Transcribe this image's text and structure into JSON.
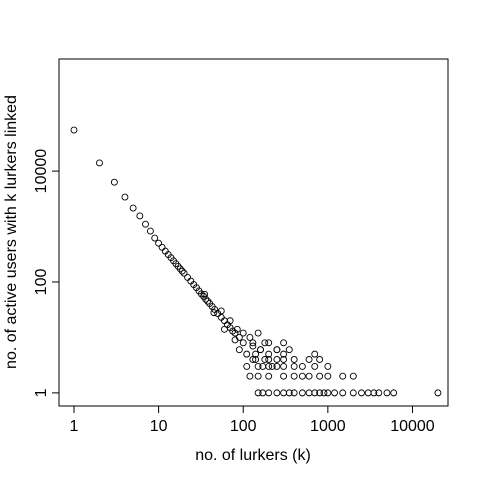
{
  "chart_data": {
    "type": "scatter",
    "x_label": "no. of lurkers (k)",
    "y_label": "no. of active users with k lurkers linked",
    "log_x": true,
    "log_y": true,
    "xlim": [
      0.665,
      26300
    ],
    "ylim": [
      0.58,
      1050000
    ],
    "xticks": [
      1,
      10,
      100,
      1000,
      10000
    ],
    "yticks": [
      1,
      100,
      10000
    ],
    "color": "#000000",
    "x": [
      1,
      2,
      3,
      4,
      5,
      6,
      7,
      8,
      9,
      10,
      11,
      12,
      13,
      14,
      15,
      16,
      17,
      18,
      19,
      20,
      22,
      24,
      26,
      28,
      30,
      32,
      34,
      36,
      38,
      40,
      43,
      46,
      50,
      55,
      60,
      65,
      70,
      75,
      80,
      90,
      100,
      35,
      45,
      55,
      60,
      70,
      80,
      85,
      90,
      100,
      110,
      120,
      130,
      140,
      150,
      160,
      170,
      180,
      200,
      220,
      250,
      150,
      170,
      200,
      250,
      300,
      350,
      400,
      500,
      600,
      700,
      800,
      900,
      1000,
      1200,
      1500,
      2000,
      2500,
      3000,
      3500,
      4000,
      5000,
      6000,
      20000,
      120,
      150,
      200,
      300,
      400,
      500,
      600,
      800,
      1000,
      1500,
      2000,
      110,
      150,
      200,
      250,
      300,
      400,
      500,
      700,
      1000,
      130,
      180,
      250,
      300,
      400,
      600,
      800,
      140,
      200,
      300,
      700,
      160,
      250,
      350,
      130,
      200,
      300
    ],
    "y": [
      55000,
      14000,
      6300,
      3400,
      2150,
      1550,
      1100,
      830,
      620,
      500,
      421,
      360,
      312,
      274,
      241,
      214,
      192,
      173,
      157,
      144,
      121,
      104,
      90,
      79,
      69,
      61,
      55,
      49,
      45,
      41,
      36,
      32,
      27,
      23,
      20,
      17,
      15,
      13,
      12,
      10,
      8,
      60,
      28,
      30,
      14,
      20,
      9,
      14,
      6,
      12,
      5,
      10,
      7,
      4,
      12,
      6,
      3,
      8,
      4,
      3,
      6,
      1,
      1,
      1,
      1,
      1,
      1,
      1,
      1,
      1,
      1,
      1,
      1,
      1,
      1,
      1,
      1,
      1,
      1,
      1,
      1,
      1,
      1,
      1,
      2,
      2,
      2,
      2,
      2,
      2,
      2,
      2,
      2,
      2,
      2,
      3,
      3,
      3,
      3,
      3,
      3,
      3,
      3,
      3,
      4,
      4,
      4,
      4,
      4,
      4,
      4,
      5,
      5,
      5,
      5,
      6,
      6,
      6,
      8,
      8,
      8
    ]
  }
}
